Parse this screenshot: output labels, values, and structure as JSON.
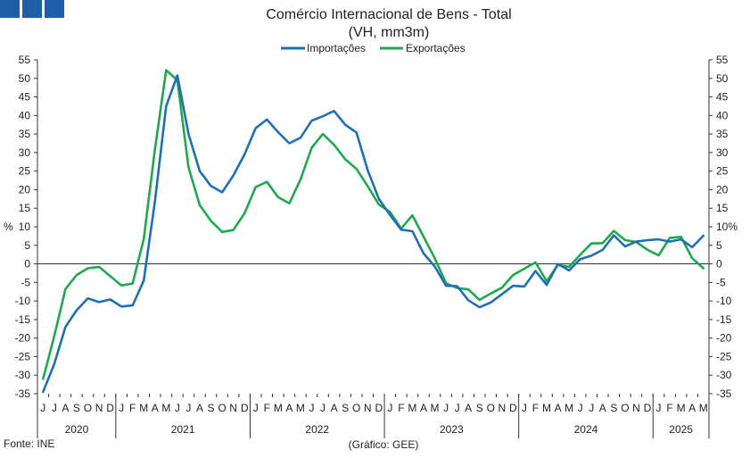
{
  "header": {
    "logo_icon": "ine-logo-icon",
    "logo_color": "#1f5ea8"
  },
  "footer": {
    "source": "Fonte: INE",
    "credit": "(Gráfico: GEE)"
  },
  "chart_data": {
    "type": "line",
    "title": "Comércio Internacional de Bens - Total",
    "subtitle": "(VH, mm3m)",
    "ylabel": "%",
    "ylabel_right": "%",
    "ylim": [
      -35,
      55
    ],
    "yticks": [
      55,
      50,
      45,
      40,
      35,
      30,
      25,
      20,
      15,
      10,
      5,
      0,
      -5,
      -10,
      -15,
      -20,
      -25,
      -30,
      -35
    ],
    "right_axis_percent_tick": 10,
    "grid": false,
    "legend_position": "top-center",
    "months": [
      "J",
      "J",
      "A",
      "S",
      "O",
      "N",
      "D",
      "J",
      "F",
      "M",
      "A",
      "M",
      "J",
      "J",
      "A",
      "S",
      "O",
      "N",
      "D",
      "J",
      "F",
      "M",
      "A",
      "M",
      "J",
      "J",
      "A",
      "S",
      "O",
      "N",
      "D",
      "J",
      "F",
      "M",
      "A",
      "M",
      "J",
      "J",
      "A",
      "S",
      "O",
      "N",
      "D",
      "J",
      "F",
      "M",
      "A",
      "M",
      "J",
      "J",
      "A",
      "S",
      "O",
      "N",
      "D",
      "J",
      "F",
      "M",
      "A",
      "M"
    ],
    "years": [
      {
        "label": "2020",
        "start": 0,
        "end": 6
      },
      {
        "label": "2021",
        "start": 7,
        "end": 18
      },
      {
        "label": "2022",
        "start": 19,
        "end": 30
      },
      {
        "label": "2023",
        "start": 31,
        "end": 42
      },
      {
        "label": "2024",
        "start": 43,
        "end": 54
      },
      {
        "label": "2025",
        "start": 55,
        "end": 59
      }
    ],
    "x_period": "2020-06 to 2025-05",
    "series": [
      {
        "name": "Importações",
        "color": "#1f6fb5",
        "values": [
          -34.5,
          -27,
          -17,
          -12.5,
          -9.3,
          -10.3,
          -9.6,
          -11.5,
          -11.2,
          -4.5,
          17,
          42.5,
          50.8,
          35,
          25,
          21,
          19.3,
          23.8,
          29.5,
          36.6,
          38.9,
          35.5,
          32.5,
          34,
          38.6,
          39.8,
          41.2,
          37.5,
          35.4,
          25.3,
          17.5,
          13.2,
          9.2,
          8.8,
          2.8,
          -0.7,
          -5.9,
          -6,
          -9.8,
          -11.7,
          -10.4,
          -8.2,
          -5.9,
          -6.1,
          -1.9,
          -5.7,
          0,
          -1.8,
          1.3,
          2.2,
          3.8,
          7.7,
          4.7,
          6,
          6.4,
          6.6,
          6,
          6.6,
          4.5,
          7.6
        ]
      },
      {
        "name": "Exportações",
        "color": "#1fa84e",
        "values": [
          -31,
          -19.5,
          -6.8,
          -3,
          -1.2,
          -0.8,
          -3.3,
          -5.8,
          -5.3,
          6.7,
          31,
          52.2,
          49.5,
          26,
          15.8,
          11.6,
          8.6,
          9.1,
          13.6,
          20.7,
          22.1,
          18,
          16.3,
          22.7,
          31.3,
          35,
          32.1,
          28.2,
          25.6,
          21,
          16,
          14,
          9.5,
          13.1,
          7.3,
          1.5,
          -5.2,
          -6.5,
          -6.9,
          -9.7,
          -8,
          -6.4,
          -3,
          -1.3,
          0.4,
          -4.7,
          -0.3,
          -0.8,
          2.5,
          5.5,
          5.6,
          8.9,
          6.4,
          5.9,
          3.8,
          2.3,
          7,
          7.3,
          1.5,
          -1.2
        ]
      }
    ]
  }
}
